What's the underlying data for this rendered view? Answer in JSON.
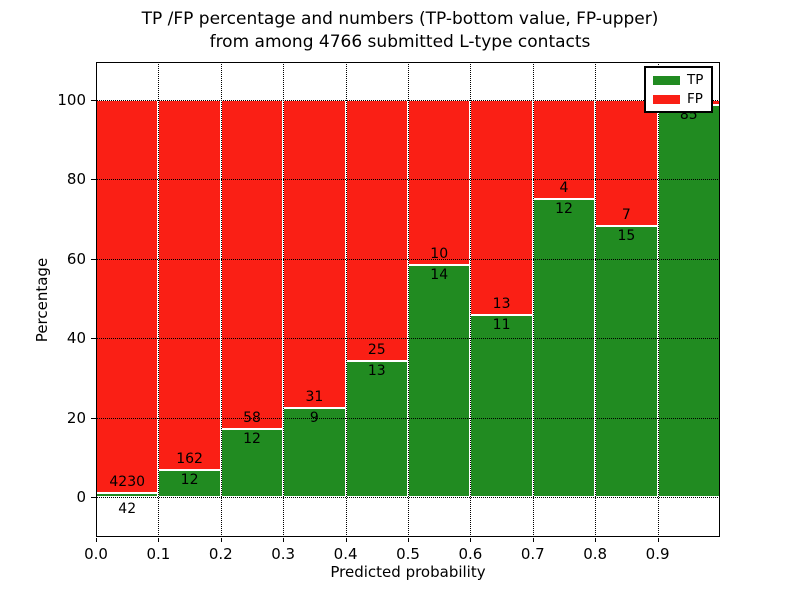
{
  "title": {
    "line1": "TP /FP percentage and numbers (TP-bottom value, FP-upper)",
    "line2": "from among 4766 submitted L-type contacts"
  },
  "axes": {
    "xlabel": "Predicted probability",
    "ylabel": "Percentage",
    "xtick_labels": [
      "0.0",
      "0.1",
      "0.2",
      "0.3",
      "0.4",
      "0.5",
      "0.6",
      "0.7",
      "0.8",
      "0.9"
    ],
    "ytick_values": [
      0,
      20,
      40,
      60,
      80,
      100
    ],
    "ytick_labels": [
      "0",
      "20",
      "40",
      "60",
      "80",
      "100"
    ]
  },
  "colors": {
    "tp": "#218b21",
    "fp": "#fa1f15",
    "grid": "#000000",
    "bar_edge": "#ffffff",
    "text": "#000000"
  },
  "legend": {
    "items": [
      {
        "label": "TP",
        "color_key": "tp"
      },
      {
        "label": "FP",
        "color_key": "fp"
      }
    ],
    "position": "upper right"
  },
  "chart_data": {
    "type": "bar",
    "stacked": true,
    "normalized_to_percent": true,
    "title": "TP /FP percentage and numbers (TP-bottom value, FP-upper) from among 4766 submitted L-type contacts",
    "xlabel": "Predicted probability",
    "ylabel": "Percentage",
    "xlim": [
      0.0,
      1.0
    ],
    "ylim": [
      -10,
      110
    ],
    "grid": true,
    "categories": [
      "0.0-0.1",
      "0.1-0.2",
      "0.2-0.3",
      "0.3-0.4",
      "0.4-0.5",
      "0.5-0.6",
      "0.6-0.7",
      "0.7-0.8",
      "0.8-0.9",
      "0.9-1.0"
    ],
    "series": [
      {
        "name": "TP",
        "values": [
          42,
          12,
          12,
          9,
          13,
          14,
          11,
          12,
          15,
          85
        ]
      },
      {
        "name": "FP",
        "values": [
          4230,
          162,
          58,
          31,
          25,
          10,
          13,
          4,
          7,
          null
        ]
      }
    ],
    "bars": [
      {
        "bin": "0.0-0.1",
        "tp": 42,
        "fp": 4230,
        "fp_label": "4230",
        "tp_label": "42",
        "tp_label_outside": true
      },
      {
        "bin": "0.1-0.2",
        "tp": 12,
        "fp": 162,
        "fp_label": "162",
        "tp_label": "12"
      },
      {
        "bin": "0.2-0.3",
        "tp": 12,
        "fp": 58,
        "fp_label": "58",
        "tp_label": "12"
      },
      {
        "bin": "0.3-0.4",
        "tp": 9,
        "fp": 31,
        "fp_label": "31",
        "tp_label": "9"
      },
      {
        "bin": "0.4-0.5",
        "tp": 13,
        "fp": 25,
        "fp_label": "25",
        "tp_label": "13"
      },
      {
        "bin": "0.5-0.6",
        "tp": 14,
        "fp": 10,
        "fp_label": "10",
        "tp_label": "14"
      },
      {
        "bin": "0.6-0.7",
        "tp": 11,
        "fp": 13,
        "fp_label": "13",
        "tp_label": "11"
      },
      {
        "bin": "0.7-0.8",
        "tp": 12,
        "fp": 4,
        "fp_label": "4",
        "tp_label": "12"
      },
      {
        "bin": "0.8-0.9",
        "tp": 15,
        "fp": 7,
        "fp_label": "7",
        "tp_label": "15"
      },
      {
        "bin": "0.9-1.0",
        "tp": 85,
        "fp": null,
        "fp_label": "",
        "tp_label": "85",
        "tp_pct": 98.8
      }
    ]
  }
}
